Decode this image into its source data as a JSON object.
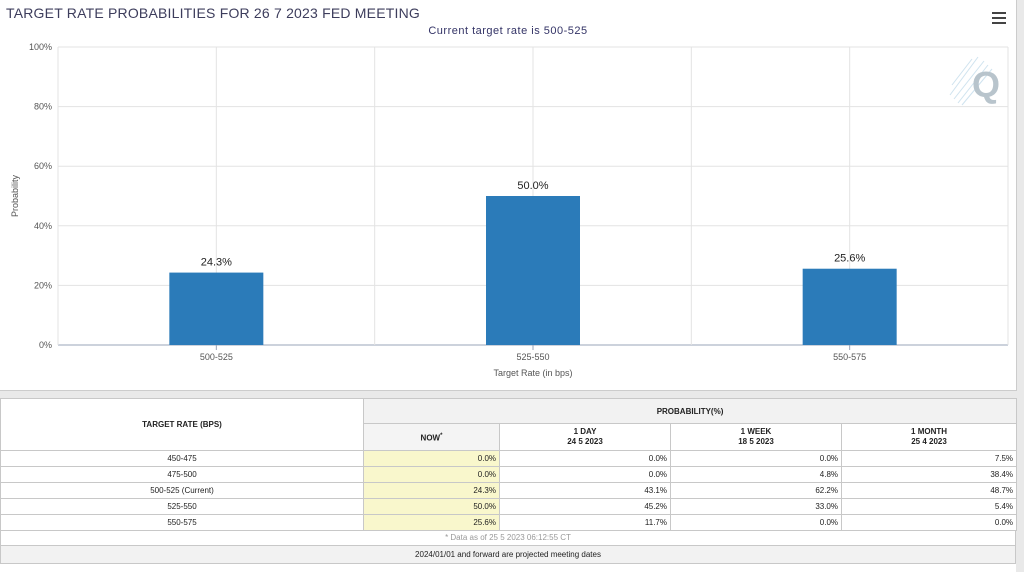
{
  "chart_data": {
    "type": "bar",
    "title": "TARGET RATE PROBABILITIES FOR 26 7 2023 FED MEETING",
    "subtitle": "Current target rate is 500-525",
    "xlabel": "Target Rate (in bps)",
    "ylabel": "Probability",
    "categories": [
      "500-525",
      "525-550",
      "550-575"
    ],
    "values": [
      24.3,
      50.0,
      25.6
    ],
    "data_labels": [
      "24.3%",
      "50.0%",
      "25.6%"
    ],
    "ylim": [
      0,
      100
    ],
    "yticks": [
      "0%",
      "20%",
      "40%",
      "60%",
      "80%",
      "100%"
    ],
    "bar_color": "#2b7bb9",
    "grid": true,
    "legend": "none"
  },
  "table": {
    "header_rate": "TARGET RATE (BPS)",
    "header_prob": "PROBABILITY(%)",
    "columns": [
      {
        "title": "NOW",
        "sup": "*",
        "date": ""
      },
      {
        "title": "1 DAY",
        "date": "24 5 2023"
      },
      {
        "title": "1 WEEK",
        "date": "18 5 2023"
      },
      {
        "title": "1 MONTH",
        "date": "25 4 2023"
      }
    ],
    "rows": [
      {
        "rate": "450-475",
        "values": [
          "0.0%",
          "0.0%",
          "0.0%",
          "7.5%"
        ]
      },
      {
        "rate": "475-500",
        "values": [
          "0.0%",
          "0.0%",
          "4.8%",
          "38.4%"
        ]
      },
      {
        "rate": "500-525 (Current)",
        "values": [
          "24.3%",
          "43.1%",
          "62.2%",
          "48.7%"
        ]
      },
      {
        "rate": "525-550",
        "values": [
          "50.0%",
          "45.2%",
          "33.0%",
          "5.4%"
        ]
      },
      {
        "rate": "550-575",
        "values": [
          "25.6%",
          "11.7%",
          "0.0%",
          "0.0%"
        ]
      }
    ],
    "note": "* Data as of 25 5 2023 06:12:55 CT",
    "projected": "2024/01/01 and forward are projected meeting dates"
  },
  "icons": {
    "menu": "hamburger-menu-icon",
    "logo": "quikstrike-q-logo-icon"
  }
}
